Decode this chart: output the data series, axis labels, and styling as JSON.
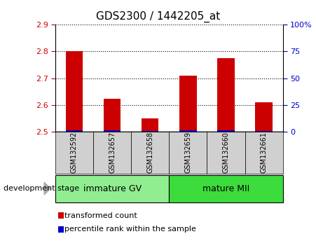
{
  "title": "GDS2300 / 1442205_at",
  "samples": [
    "GSM132592",
    "GSM132657",
    "GSM132658",
    "GSM132659",
    "GSM132660",
    "GSM132661"
  ],
  "red_values": [
    2.8,
    2.623,
    2.55,
    2.71,
    2.775,
    2.61
  ],
  "blue_values": [
    2.503,
    2.503,
    2.502,
    2.503,
    2.503,
    2.502
  ],
  "baseline": 2.5,
  "ylim": [
    2.5,
    2.9
  ],
  "yticks": [
    2.5,
    2.6,
    2.7,
    2.8,
    2.9
  ],
  "right_ylim": [
    0,
    100
  ],
  "right_yticks": [
    0,
    25,
    50,
    75,
    100
  ],
  "right_yticklabels": [
    "0",
    "25",
    "50",
    "75",
    "100%"
  ],
  "left_tick_color": "#cc0000",
  "right_tick_color": "#0000cc",
  "groups": [
    {
      "label": "immature GV",
      "start": 0,
      "end": 3,
      "color": "#90ee90"
    },
    {
      "label": "mature MII",
      "start": 3,
      "end": 6,
      "color": "#3ddc3d"
    }
  ],
  "group_label": "development stage",
  "bar_width": 0.45,
  "red_color": "#cc0000",
  "blue_color": "#0000cc",
  "legend_items": [
    {
      "label": "transformed count",
      "color": "#cc0000"
    },
    {
      "label": "percentile rank within the sample",
      "color": "#0000cc"
    }
  ],
  "gray_color": "#d0d0d0",
  "plot_bg": "#ffffff",
  "title_fontsize": 11,
  "tick_fontsize": 8,
  "sample_fontsize": 7,
  "group_fontsize": 9,
  "legend_fontsize": 8
}
